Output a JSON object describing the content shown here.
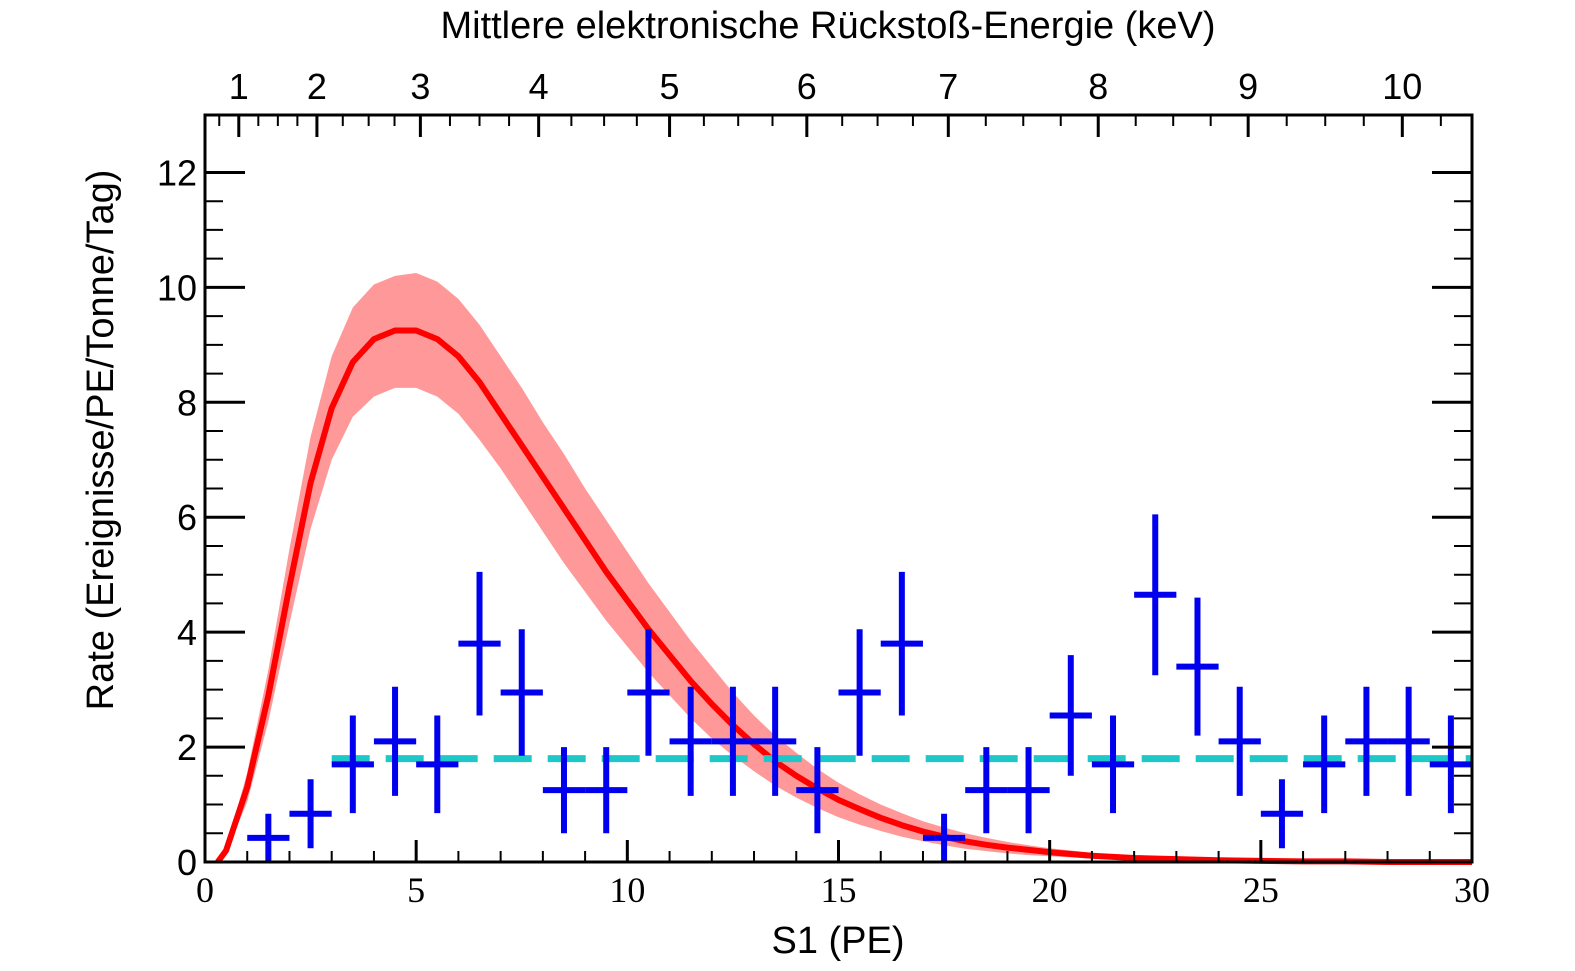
{
  "chart_data": {
    "type": "line",
    "title": "",
    "top_axis": {
      "label": "Mittlere elektronische Rückstoß-Energie (keV)",
      "ticks": [
        {
          "label": "1",
          "s1": 0.8
        },
        {
          "label": "2",
          "s1": 2.65
        },
        {
          "label": "3",
          "s1": 5.1
        },
        {
          "label": "4",
          "s1": 7.9
        },
        {
          "label": "5",
          "s1": 11.0
        },
        {
          "label": "6",
          "s1": 14.25
        },
        {
          "label": "7",
          "s1": 17.6
        },
        {
          "label": "8",
          "s1": 21.15
        },
        {
          "label": "9",
          "s1": 24.7
        },
        {
          "label": "10",
          "s1": 28.35
        }
      ]
    },
    "xlabel": "S1 (PE)",
    "ylabel": "Rate (Ereignisse/PE/Tonne/Tag)",
    "xlim": [
      0,
      30
    ],
    "ylim": [
      0,
      13
    ],
    "x_ticks": [
      0,
      5,
      10,
      15,
      20,
      25,
      30
    ],
    "y_ticks": [
      0,
      2,
      4,
      6,
      8,
      10,
      12
    ],
    "grid": false,
    "series": [
      {
        "kind": "curve",
        "color": "#ff0000",
        "x": [
          0.3,
          0.5,
          1.0,
          1.5,
          2.0,
          2.5,
          3.0,
          3.5,
          4.0,
          4.5,
          5.0,
          5.5,
          6.0,
          6.5,
          7.0,
          7.5,
          8.0,
          8.5,
          9.0,
          9.5,
          10.0,
          10.5,
          11.0,
          11.5,
          12.0,
          12.5,
          13.0,
          13.5,
          14.0,
          14.5,
          15.0,
          15.5,
          16.0,
          16.5,
          17.0,
          17.5,
          18.0,
          18.5,
          19.0,
          19.5,
          20.0,
          21.0,
          22.0,
          23.0,
          24.0,
          25.0,
          26.0,
          27.0,
          28.0,
          29.0,
          30.0
        ],
        "y": [
          0.0,
          0.2,
          1.3,
          2.9,
          4.8,
          6.6,
          7.9,
          8.7,
          9.1,
          9.25,
          9.25,
          9.1,
          8.8,
          8.35,
          7.8,
          7.25,
          6.7,
          6.15,
          5.6,
          5.05,
          4.55,
          4.05,
          3.6,
          3.15,
          2.75,
          2.38,
          2.05,
          1.75,
          1.5,
          1.28,
          1.08,
          0.92,
          0.77,
          0.64,
          0.53,
          0.44,
          0.36,
          0.3,
          0.25,
          0.21,
          0.17,
          0.11,
          0.07,
          0.05,
          0.03,
          0.02,
          0.01,
          0.01,
          0.0,
          0.0,
          0.0
        ],
        "y_low": [
          0.0,
          0.15,
          1.05,
          2.45,
          4.15,
          5.8,
          7.0,
          7.75,
          8.1,
          8.25,
          8.25,
          8.1,
          7.8,
          7.35,
          6.85,
          6.3,
          5.75,
          5.2,
          4.7,
          4.2,
          3.75,
          3.3,
          2.9,
          2.5,
          2.15,
          1.85,
          1.58,
          1.33,
          1.12,
          0.94,
          0.78,
          0.65,
          0.54,
          0.44,
          0.36,
          0.29,
          0.23,
          0.19,
          0.15,
          0.12,
          0.1,
          0.06,
          0.04,
          0.02,
          0.01,
          0.01,
          0.0,
          0.0,
          0.0,
          0.0,
          0.0
        ],
        "y_high": [
          0.0,
          0.25,
          1.55,
          3.35,
          5.45,
          7.4,
          8.8,
          9.65,
          10.05,
          10.2,
          10.25,
          10.1,
          9.8,
          9.35,
          8.8,
          8.25,
          7.65,
          7.1,
          6.5,
          5.95,
          5.4,
          4.85,
          4.35,
          3.85,
          3.4,
          2.95,
          2.55,
          2.2,
          1.9,
          1.62,
          1.38,
          1.18,
          1.0,
          0.85,
          0.71,
          0.6,
          0.5,
          0.42,
          0.35,
          0.29,
          0.24,
          0.16,
          0.1,
          0.07,
          0.05,
          0.03,
          0.02,
          0.01,
          0.01,
          0.0,
          0.0
        ],
        "band_color": "#ff9999"
      },
      {
        "kind": "dashed-line",
        "color": "#1ec8c8",
        "x": [
          3.0,
          30.0
        ],
        "y": [
          1.8,
          1.8
        ]
      },
      {
        "kind": "points-with-errors",
        "color": "#0000ee",
        "x": [
          1.5,
          2.5,
          3.5,
          4.5,
          5.5,
          6.5,
          7.5,
          8.5,
          9.5,
          10.5,
          11.5,
          12.5,
          13.5,
          14.5,
          15.5,
          16.5,
          17.5,
          18.5,
          19.5,
          20.5,
          21.5,
          22.5,
          23.5,
          24.5,
          25.5,
          26.5,
          27.5,
          28.5,
          29.5
        ],
        "y": [
          0.42,
          0.84,
          1.7,
          2.1,
          1.7,
          3.8,
          2.95,
          1.25,
          1.25,
          2.95,
          2.1,
          2.1,
          2.1,
          1.25,
          2.95,
          3.8,
          0.42,
          1.25,
          1.25,
          2.55,
          1.7,
          4.65,
          3.4,
          2.1,
          0.84,
          1.7,
          2.1,
          2.1,
          1.7
        ],
        "yerr": [
          0.42,
          0.6,
          0.85,
          0.95,
          0.85,
          1.25,
          1.1,
          0.75,
          0.75,
          1.1,
          0.95,
          0.95,
          0.95,
          0.75,
          1.1,
          1.25,
          0.42,
          0.75,
          0.75,
          1.05,
          0.85,
          1.4,
          1.2,
          0.95,
          0.6,
          0.85,
          0.95,
          0.95,
          0.85
        ],
        "xerr": 0.5
      }
    ]
  }
}
